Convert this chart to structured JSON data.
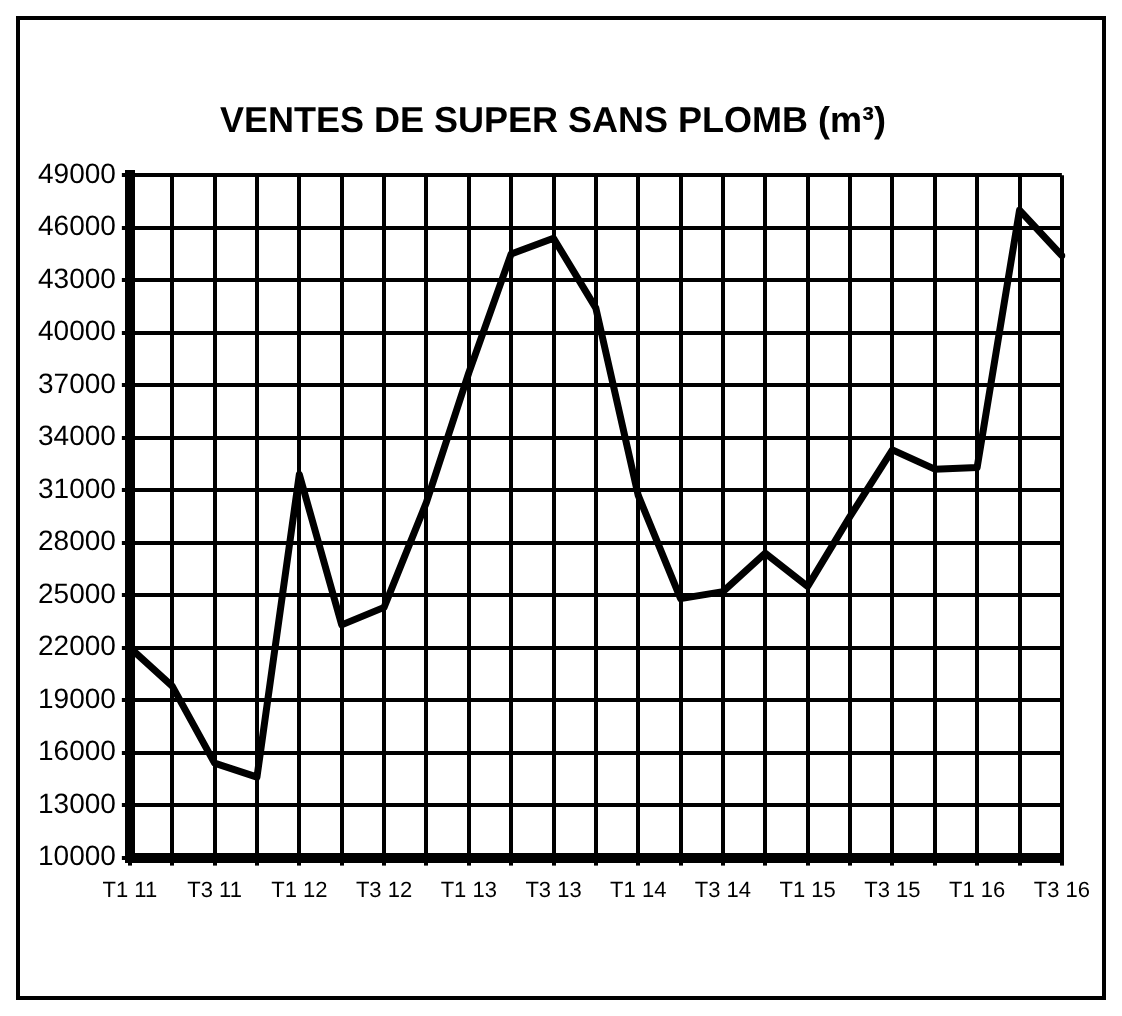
{
  "chart_data": {
    "type": "line",
    "title": "VENTES DE SUPER SANS PLOMB (m³)",
    "categories": [
      "T1 11",
      null,
      "T3 11",
      null,
      "T1 12",
      null,
      "T3 12",
      null,
      "T1 13",
      null,
      "T3 13",
      null,
      "T1 14",
      null,
      "T3 14",
      null,
      "T1 15",
      null,
      "T3 15",
      null,
      "T1 16",
      null,
      "T3 16"
    ],
    "series": [
      {
        "color": "#000000",
        "values": [
          22000,
          19800,
          15400,
          14600,
          31900,
          23300,
          24300,
          30300,
          37700,
          44500,
          45400,
          41400,
          30700,
          24800,
          25200,
          27400,
          25500,
          29500,
          33300,
          32200,
          32300,
          47000,
          44400
        ]
      }
    ],
    "ylim": [
      10000,
      49000
    ],
    "yticks": [
      10000,
      13000,
      16000,
      19000,
      22000,
      25000,
      28000,
      31000,
      34000,
      37000,
      40000,
      43000,
      46000,
      49000
    ],
    "grid": true,
    "legend": false,
    "marker": "none",
    "line_style": "solid"
  }
}
